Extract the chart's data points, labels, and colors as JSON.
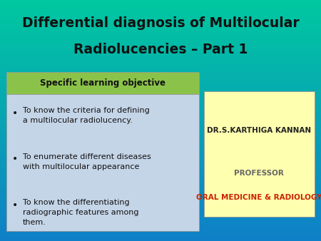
{
  "title_line1": "Differential diagnosis of Multilocular",
  "title_line2": "Radiolucencies – Part 1",
  "title_color": "#111111",
  "title_fontsize": 13.5,
  "header_text": "Specific learning objective",
  "header_bg": "#8bc34a",
  "header_fontsize": 8.5,
  "left_box_bg": "#c5d5e8",
  "bullet_points": [
    "To know the criteria for defining\na multilocular radiolucency.",
    "To enumerate different diseases\nwith multilocular appearance",
    "To know the differentiating\nradiographic features among\nthem."
  ],
  "bullet_fontsize": 8.0,
  "right_box_bg": "#ffffb0",
  "author_name": "DR.S.KARTHIGA KANNAN",
  "author_color": "#222222",
  "author_fontsize": 7.5,
  "professor_text": "PROFESSOR",
  "professor_color": "#666666",
  "professor_fontsize": 7.5,
  "dept_text": "ORAL MEDICINE & RADIOLOGY",
  "dept_color": "#cc2200",
  "dept_fontsize": 7.5,
  "bg_top_color": "#00c8a0",
  "bg_bottom_color": "#1080c8"
}
